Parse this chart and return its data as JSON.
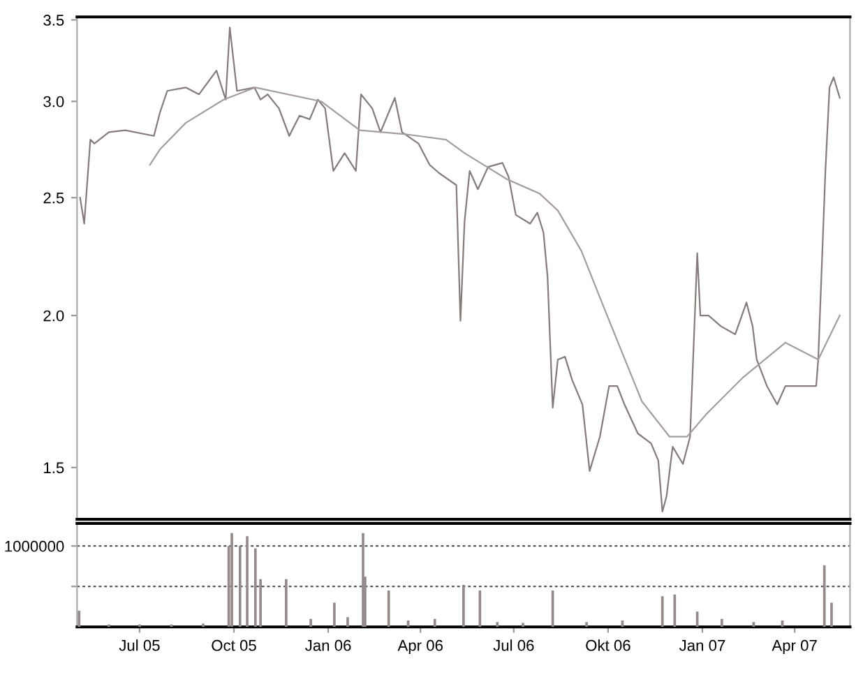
{
  "chart_data": [
    {
      "type": "line",
      "log": "y",
      "tick_labels": "y",
      "grid": false,
      "legend": false,
      "marker": "none",
      "line_style": "solid",
      "xlim": [
        "2005-05-01",
        "2007-05-25"
      ],
      "ylim": [
        1.36,
        3.52
      ],
      "yticks": [
        1.5,
        {
          "value": 2,
          "label": "2.0"
        },
        2.5,
        {
          "value": 3,
          "label": "3.0"
        },
        3.5
      ],
      "series": [
        {
          "color": "#857b7b",
          "x": [
            "2005-05-04",
            "2005-05-08",
            "2005-05-14",
            "2005-05-18",
            "2005-06-01",
            "2005-06-17",
            "2005-07-15",
            "2005-07-21",
            "2005-07-28",
            "2005-08-15",
            "2005-08-28",
            "2005-09-14",
            "2005-09-23",
            "2005-09-27",
            "2005-10-04",
            "2005-10-21",
            "2005-10-27",
            "2005-11-03",
            "2005-11-14",
            "2005-11-24",
            "2005-12-04",
            "2005-12-14",
            "2005-12-22",
            "2005-12-29",
            "2006-01-06",
            "2006-01-17",
            "2006-01-28",
            "2006-02-02",
            "2006-02-13",
            "2006-02-21",
            "2006-03-07",
            "2006-03-14",
            "2006-03-30",
            "2006-04-10",
            "2006-04-19",
            "2006-05-06",
            "2006-05-10",
            "2006-05-14",
            "2006-05-19",
            "2006-05-27",
            "2006-06-06",
            "2006-06-20",
            "2006-06-26",
            "2006-07-03",
            "2006-07-17",
            "2006-07-24",
            "2006-07-30",
            "2006-08-03",
            "2006-08-08",
            "2006-08-13",
            "2006-08-20",
            "2006-08-27",
            "2006-09-06",
            "2006-09-13",
            "2006-09-23",
            "2006-10-02",
            "2006-10-10",
            "2006-10-17",
            "2006-10-30",
            "2006-11-12",
            "2006-11-19",
            "2006-11-23",
            "2006-11-27",
            "2006-12-03",
            "2006-12-13",
            "2006-12-20",
            "2006-12-27",
            "2006-12-30",
            "2007-01-07",
            "2007-01-19",
            "2007-02-02",
            "2007-02-13",
            "2007-02-19",
            "2007-02-23",
            "2007-03-05",
            "2007-03-15",
            "2007-03-23",
            "2007-04-05",
            "2007-04-22",
            "2007-04-24",
            "2007-05-01",
            "2007-05-05",
            "2007-05-09",
            "2007-05-15"
          ],
          "values": [
            2.5,
            2.38,
            2.79,
            2.77,
            2.83,
            2.84,
            2.81,
            2.94,
            3.06,
            3.08,
            3.04,
            3.18,
            3.01,
            3.45,
            3.06,
            3.08,
            3.01,
            3.04,
            2.96,
            2.81,
            2.92,
            2.9,
            3.01,
            2.96,
            2.63,
            2.72,
            2.63,
            3.04,
            2.96,
            2.83,
            3.02,
            2.83,
            2.77,
            2.66,
            2.62,
            2.56,
            1.98,
            2.39,
            2.63,
            2.54,
            2.65,
            2.67,
            2.6,
            2.42,
            2.38,
            2.43,
            2.34,
            2.15,
            1.68,
            1.84,
            1.85,
            1.77,
            1.69,
            1.49,
            1.59,
            1.75,
            1.75,
            1.69,
            1.6,
            1.57,
            1.52,
            1.38,
            1.42,
            1.56,
            1.51,
            1.59,
            2.25,
            2.0,
            2.0,
            1.96,
            1.93,
            2.05,
            1.96,
            1.84,
            1.75,
            1.69,
            1.75,
            1.75,
            1.75,
            1.84,
            2.63,
            3.08,
            3.14,
            3.02
          ]
        },
        {
          "color": "#a59d9d",
          "x": [
            "2005-07-11",
            "2005-07-21",
            "2005-08-15",
            "2005-09-21",
            "2005-10-22",
            "2005-12-25",
            "2006-02-01",
            "2006-03-16",
            "2006-03-30",
            "2006-04-26",
            "2006-05-14",
            "2006-06-24",
            "2006-07-26",
            "2006-08-13",
            "2006-09-05",
            "2006-09-27",
            "2006-11-03",
            "2006-11-30",
            "2006-12-17",
            "2007-01-05",
            "2007-02-10",
            "2007-03-23",
            "2007-04-24",
            "2007-05-15"
          ],
          "values": [
            2.66,
            2.74,
            2.88,
            3.01,
            3.08,
            3.0,
            2.84,
            2.82,
            2.81,
            2.79,
            2.72,
            2.59,
            2.52,
            2.44,
            2.26,
            2.03,
            1.7,
            1.59,
            1.59,
            1.66,
            1.78,
            1.9,
            1.84,
            2.0
          ]
        }
      ]
    },
    {
      "type": "bar",
      "grid": "y",
      "legend": false,
      "color": "#958a8a",
      "xlim": [
        "2005-05-01",
        "2007-05-25"
      ],
      "ylim": [
        0,
        1280000
      ],
      "yticks": [
        {
          "value": 500000,
          "label": null
        },
        1000000
      ],
      "xticks": [
        {
          "value": "2005-07-01",
          "label": "Jul 05"
        },
        {
          "value": "2005-10-01",
          "label": "Oct 05"
        },
        {
          "value": "2006-01-01",
          "label": "Jan 06"
        },
        {
          "value": "2006-04-01",
          "label": "Apr 06"
        },
        {
          "value": "2006-07-01",
          "label": "Jul 06"
        },
        {
          "value": "2006-10-01",
          "label": "Okt 06"
        },
        {
          "value": "2007-01-01",
          "label": "Jan 07"
        },
        {
          "value": "2007-04-01",
          "label": "Apr 07"
        }
      ],
      "x": [
        "2005-05-03",
        "2005-06-01",
        "2005-07-01",
        "2005-08-01",
        "2005-09-01",
        "2005-09-26",
        "2005-09-29",
        "2005-10-07",
        "2005-10-14",
        "2005-10-22",
        "2005-10-27",
        "2005-11-21",
        "2005-12-15",
        "2006-01-07",
        "2006-01-20",
        "2006-02-04",
        "2006-02-06",
        "2006-03-01",
        "2006-03-20",
        "2006-04-15",
        "2006-05-13",
        "2006-05-29",
        "2006-06-15",
        "2006-07-10",
        "2006-08-08",
        "2006-09-10",
        "2006-10-15",
        "2006-11-23",
        "2006-12-05",
        "2006-12-27",
        "2007-01-20",
        "2007-02-20",
        "2007-03-20",
        "2007-04-30",
        "2007-05-07"
      ],
      "values": [
        200000,
        30000,
        30000,
        30000,
        40000,
        1000000,
        1160000,
        1000000,
        1120000,
        970000,
        590000,
        590000,
        100000,
        300000,
        120000,
        1160000,
        620000,
        450000,
        80000,
        100000,
        520000,
        450000,
        60000,
        50000,
        450000,
        60000,
        80000,
        380000,
        400000,
        190000,
        100000,
        60000,
        80000,
        760000,
        300000
      ]
    }
  ]
}
